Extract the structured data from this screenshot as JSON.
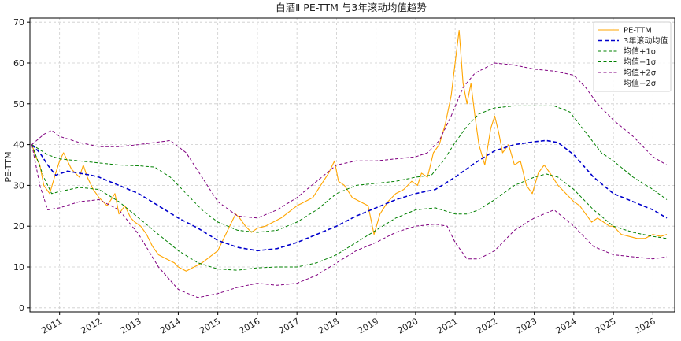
{
  "chart_data": {
    "type": "line",
    "title": "白酒Ⅱ PE-TTM 与3年滚动均值趋势",
    "xlabel": "",
    "ylabel": "PE-TTM",
    "ylim": [
      -1,
      71
    ],
    "xlim": [
      2010.25,
      2026.55
    ],
    "yticks": [
      0,
      10,
      20,
      30,
      40,
      50,
      60,
      70
    ],
    "xticks": [
      2011,
      2012,
      2013,
      2014,
      2015,
      2016,
      2017,
      2018,
      2019,
      2020,
      2021,
      2022,
      2023,
      2024,
      2025,
      2026
    ],
    "grid": true,
    "legend_position": "top-right",
    "series": [
      {
        "name": "PE-TTM",
        "color": "#FFA500",
        "style": "solid",
        "x": [
          2010.3,
          2010.4,
          2010.5,
          2010.6,
          2010.75,
          2010.9,
          2011.0,
          2011.1,
          2011.3,
          2011.5,
          2011.6,
          2011.7,
          2011.85,
          2012.0,
          2012.2,
          2012.4,
          2012.5,
          2012.65,
          2012.8,
          2012.9,
          2013.05,
          2013.2,
          2013.35,
          2013.5,
          2013.7,
          2013.9,
          2014.0,
          2014.2,
          2014.4,
          2014.6,
          2014.8,
          2015.0,
          2015.15,
          2015.3,
          2015.45,
          2015.55,
          2015.7,
          2015.85,
          2016.0,
          2016.2,
          2016.4,
          2016.6,
          2016.8,
          2017.0,
          2017.2,
          2017.4,
          2017.6,
          2017.8,
          2017.95,
          2018.05,
          2018.2,
          2018.4,
          2018.6,
          2018.8,
          2018.95,
          2019.1,
          2019.3,
          2019.5,
          2019.7,
          2019.9,
          2020.05,
          2020.15,
          2020.3,
          2020.45,
          2020.6,
          2020.75,
          2020.9,
          2021.0,
          2021.1,
          2021.2,
          2021.3,
          2021.4,
          2021.5,
          2021.6,
          2021.75,
          2021.9,
          2022.0,
          2022.1,
          2022.2,
          2022.35,
          2022.5,
          2022.65,
          2022.8,
          2022.95,
          2023.1,
          2023.25,
          2023.4,
          2023.6,
          2023.8,
          2024.0,
          2024.15,
          2024.3,
          2024.45,
          2024.6,
          2024.75,
          2024.9,
          2025.0,
          2025.2,
          2025.4,
          2025.6,
          2025.8,
          2026.0,
          2026.2,
          2026.35
        ],
        "values": [
          40,
          37,
          35,
          30,
          28,
          33,
          36,
          38,
          34,
          32,
          35,
          32,
          29,
          27,
          25,
          28,
          23,
          25,
          22,
          21,
          20,
          18,
          15,
          13,
          12,
          11,
          10,
          9,
          10,
          11,
          12.5,
          14,
          17,
          20,
          23,
          22,
          20,
          18.5,
          19.5,
          20,
          21,
          22,
          23.5,
          25,
          26,
          27,
          30,
          33,
          36,
          31,
          30,
          27,
          26,
          25,
          18,
          23,
          26,
          28,
          29,
          31,
          30,
          33,
          32,
          38,
          40,
          45,
          52,
          60,
          68,
          55,
          50,
          55,
          47,
          40,
          35,
          44,
          47,
          43,
          38,
          40,
          35,
          36,
          30,
          28,
          33,
          35,
          33,
          30,
          28,
          26,
          25,
          23,
          21,
          22,
          21,
          20,
          20,
          18,
          17.5,
          17,
          17,
          18,
          17.5,
          18
        ]
      },
      {
        "name": "3年滚动均值",
        "color": "#0000CC",
        "style": "dashed-bold",
        "x": [
          2010.3,
          2010.5,
          2010.7,
          2010.9,
          2011.2,
          2011.5,
          2011.8,
          2012.0,
          2012.5,
          2013.0,
          2013.5,
          2014.0,
          2014.5,
          2015.0,
          2015.5,
          2016.0,
          2016.5,
          2017.0,
          2017.5,
          2018.0,
          2018.5,
          2019.0,
          2019.5,
          2020.0,
          2020.5,
          2021.0,
          2021.5,
          2022.0,
          2022.5,
          2023.0,
          2023.3,
          2023.6,
          2024.0,
          2024.5,
          2025.0,
          2025.5,
          2026.0,
          2026.35
        ],
        "values": [
          40,
          38,
          35,
          32.5,
          33.5,
          33,
          32.5,
          32,
          30,
          28,
          25,
          22,
          19.5,
          16.5,
          14.8,
          14,
          14.5,
          16,
          18,
          20,
          22.5,
          24.5,
          26.5,
          28,
          29,
          32,
          35.5,
          38.5,
          40,
          40.7,
          41,
          40.5,
          37.5,
          32,
          28,
          26,
          24,
          22
        ]
      },
      {
        "name": "均值+1σ",
        "color": "#008000",
        "style": "dashed",
        "x": [
          2010.3,
          2010.7,
          2011.0,
          2011.5,
          2012.0,
          2012.5,
          2013.0,
          2013.4,
          2013.8,
          2014.2,
          2014.6,
          2015.0,
          2015.5,
          2016.0,
          2016.5,
          2017.0,
          2017.5,
          2018.0,
          2018.5,
          2019.0,
          2019.5,
          2020.0,
          2020.4,
          2020.7,
          2021.0,
          2021.3,
          2021.6,
          2022.0,
          2022.5,
          2023.0,
          2023.5,
          2023.9,
          2024.3,
          2024.7,
          2025.0,
          2025.5,
          2026.0,
          2026.35
        ],
        "values": [
          40,
          37.5,
          36.5,
          36,
          35.5,
          35,
          34.8,
          34.5,
          32,
          28,
          24,
          21,
          19,
          18.5,
          19,
          21,
          24,
          28,
          30,
          30.5,
          31,
          32,
          32.5,
          36,
          40.5,
          44.5,
          47.5,
          49,
          49.5,
          49.5,
          49.5,
          48,
          43,
          38,
          36,
          32,
          29,
          26.5
        ]
      },
      {
        "name": "均值−1σ",
        "color": "#008000",
        "style": "dashed",
        "x": [
          2010.3,
          2010.6,
          2010.8,
          2011.0,
          2011.5,
          2012.0,
          2012.5,
          2013.0,
          2013.5,
          2014.0,
          2014.5,
          2015.0,
          2015.5,
          2016.0,
          2016.5,
          2017.0,
          2017.5,
          2018.0,
          2018.5,
          2019.0,
          2019.5,
          2020.0,
          2020.5,
          2021.0,
          2021.3,
          2021.6,
          2022.0,
          2022.5,
          2023.0,
          2023.3,
          2023.6,
          2024.0,
          2024.5,
          2025.0,
          2025.5,
          2026.0,
          2026.35
        ],
        "values": [
          40,
          32,
          28,
          28.5,
          29.5,
          29,
          26,
          22,
          18,
          14,
          11,
          9.5,
          9.2,
          9.8,
          10,
          10,
          11,
          13,
          16,
          19,
          22,
          24,
          24.5,
          23,
          23,
          24,
          26.5,
          30,
          32,
          32.8,
          32,
          29,
          24,
          20,
          18.5,
          17.5,
          17
        ]
      },
      {
        "name": "均值+2σ",
        "color": "#800080",
        "style": "dashed",
        "x": [
          2010.3,
          2010.6,
          2010.8,
          2011.0,
          2011.5,
          2012.0,
          2012.5,
          2013.0,
          2013.4,
          2013.8,
          2014.2,
          2014.6,
          2015.0,
          2015.5,
          2016.0,
          2016.5,
          2017.0,
          2017.5,
          2018.0,
          2018.5,
          2019.0,
          2019.5,
          2020.0,
          2020.3,
          2020.6,
          2020.9,
          2021.2,
          2021.5,
          2021.8,
          2022.0,
          2022.5,
          2023.0,
          2023.5,
          2024.0,
          2024.3,
          2024.6,
          2025.0,
          2025.5,
          2026.0,
          2026.35
        ],
        "values": [
          40,
          42.5,
          43.5,
          42,
          40.5,
          39.5,
          39.5,
          40,
          40.5,
          41,
          38,
          32,
          26,
          22.5,
          22,
          24,
          27,
          31,
          35,
          36,
          36,
          36.5,
          37,
          38,
          41,
          47,
          54,
          57.5,
          59,
          60,
          59.5,
          58.5,
          58,
          57,
          54,
          50,
          46,
          42,
          37,
          35
        ]
      },
      {
        "name": "均值−2σ",
        "color": "#800080",
        "style": "dashed",
        "x": [
          2010.3,
          2010.5,
          2010.7,
          2011.0,
          2011.5,
          2012.0,
          2012.5,
          2013.0,
          2013.5,
          2014.0,
          2014.5,
          2015.0,
          2015.5,
          2016.0,
          2016.5,
          2017.0,
          2017.5,
          2018.0,
          2018.5,
          2019.0,
          2019.5,
          2020.0,
          2020.5,
          2020.8,
          2021.0,
          2021.3,
          2021.6,
          2022.0,
          2022.5,
          2023.0,
          2023.5,
          2024.0,
          2024.5,
          2025.0,
          2025.5,
          2026.0,
          2026.35
        ],
        "values": [
          40,
          30,
          24,
          24.5,
          26,
          26.5,
          24,
          18,
          10,
          4.5,
          2.5,
          3.5,
          5,
          6,
          5.5,
          6,
          8,
          11,
          14,
          16,
          18.5,
          20,
          20.5,
          20,
          16,
          12,
          12,
          14,
          19,
          22,
          24,
          20,
          15,
          13,
          12.5,
          12,
          12.5
        ]
      }
    ]
  }
}
